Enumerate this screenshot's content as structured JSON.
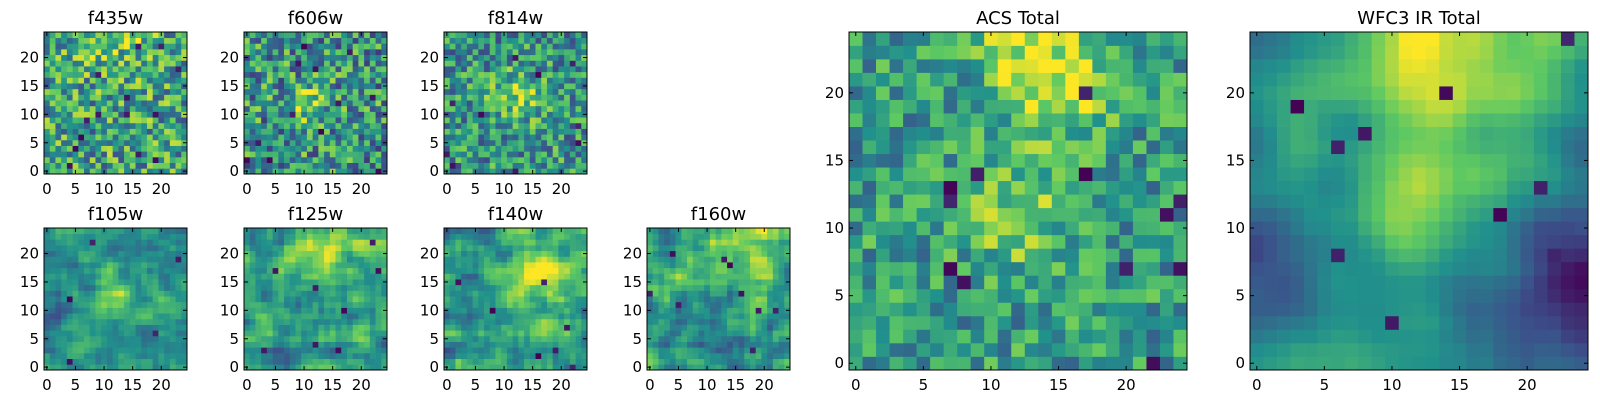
{
  "figure": {
    "colormap": "viridis",
    "grid": false,
    "cmap_colors": [
      "#440154",
      "#3b528b",
      "#21918c",
      "#5ec962",
      "#fde725"
    ]
  },
  "chart_data": [
    {
      "type": "heatmap",
      "title": "f435w",
      "grid_size": 25,
      "seed": 435,
      "xticks": [
        0,
        5,
        10,
        15,
        20
      ],
      "yticks": [
        0,
        5,
        10,
        15,
        20
      ],
      "xlim": [
        -0.5,
        24.5
      ],
      "ylim": [
        -0.5,
        24.5
      ],
      "mean": 0.58,
      "noise": 0.34,
      "smooth": 0,
      "blob": {
        "x": 12,
        "y": 24,
        "amp": 0.15,
        "r": 5
      },
      "dark_spots": 14
    },
    {
      "type": "heatmap",
      "title": "f606w",
      "grid_size": 25,
      "seed": 606,
      "xticks": [
        0,
        5,
        10,
        15,
        20
      ],
      "yticks": [
        0,
        5,
        10,
        15,
        20
      ],
      "xlim": [
        -0.5,
        24.5
      ],
      "ylim": [
        -0.5,
        24.5
      ],
      "mean": 0.52,
      "noise": 0.34,
      "smooth": 0,
      "blob": {
        "x": 11,
        "y": 12,
        "amp": 0.25,
        "r": 2.5
      },
      "dark_spots": 12
    },
    {
      "type": "heatmap",
      "title": "f814w",
      "grid_size": 25,
      "seed": 814,
      "xticks": [
        0,
        5,
        10,
        15,
        20
      ],
      "yticks": [
        0,
        5,
        10,
        15,
        20
      ],
      "xlim": [
        -0.5,
        24.5
      ],
      "ylim": [
        -0.5,
        24.5
      ],
      "mean": 0.52,
      "noise": 0.3,
      "smooth": 0,
      "blob": {
        "x": 12,
        "y": 13,
        "amp": 0.3,
        "r": 3
      },
      "dark_spots": 10
    },
    {
      "type": "heatmap",
      "title": "f105w",
      "grid_size": 25,
      "seed": 105,
      "xticks": [
        0,
        5,
        10,
        15,
        20
      ],
      "yticks": [
        0,
        5,
        10,
        15,
        20
      ],
      "xlim": [
        -0.5,
        24.5
      ],
      "ylim": [
        -0.5,
        24.5
      ],
      "mean": 0.5,
      "noise": 0.26,
      "smooth": 1,
      "blob": {
        "x": 12,
        "y": 13,
        "amp": 0.3,
        "r": 3
      },
      "dark_spots": 5
    },
    {
      "type": "heatmap",
      "title": "f125w",
      "grid_size": 25,
      "seed": 125,
      "xticks": [
        0,
        5,
        10,
        15,
        20
      ],
      "yticks": [
        0,
        5,
        10,
        15,
        20
      ],
      "xlim": [
        -0.5,
        24.5
      ],
      "ylim": [
        -0.5,
        24.5
      ],
      "mean": 0.55,
      "noise": 0.3,
      "smooth": 1,
      "blob": {
        "x": 14,
        "y": 20,
        "amp": 0.25,
        "r": 5
      },
      "dark_spots": 8
    },
    {
      "type": "heatmap",
      "title": "f140w",
      "grid_size": 25,
      "seed": 140,
      "xticks": [
        0,
        5,
        10,
        15,
        20
      ],
      "yticks": [
        0,
        5,
        10,
        15,
        20
      ],
      "xlim": [
        -0.5,
        24.5
      ],
      "ylim": [
        -0.5,
        24.5
      ],
      "mean": 0.55,
      "noise": 0.3,
      "smooth": 1,
      "blob": {
        "x": 15,
        "y": 16,
        "amp": 0.3,
        "r": 5
      },
      "dark_spots": 7
    },
    {
      "type": "heatmap",
      "title": "f160w",
      "grid_size": 25,
      "seed": 160,
      "xticks": [
        0,
        5,
        10,
        15,
        20
      ],
      "yticks": [
        0,
        5,
        10,
        15,
        20
      ],
      "xlim": [
        -0.5,
        24.5
      ],
      "ylim": [
        -0.5,
        24.5
      ],
      "mean": 0.52,
      "noise": 0.3,
      "smooth": 1,
      "blob": {
        "x": 15,
        "y": 22,
        "amp": 0.3,
        "r": 6
      },
      "dark_spots": 9
    },
    {
      "type": "heatmap",
      "title": "ACS Total",
      "grid_size": 25,
      "seed": 1001,
      "xticks": [
        0,
        5,
        10,
        15,
        20
      ],
      "yticks": [
        0,
        5,
        10,
        15,
        20
      ],
      "xlim": [
        -0.5,
        24.5
      ],
      "ylim": [
        -0.5,
        24.5
      ],
      "mean": 0.55,
      "noise": 0.24,
      "smooth": 0,
      "blob": {
        "x": 12,
        "y": 11,
        "amp": 0.3,
        "r": 2.5
      },
      "dark_spots": 12,
      "extra_blobs": [
        {
          "x": 15,
          "y": 20,
          "amp": 0.3,
          "r": 2.5
        },
        {
          "x": 13,
          "y": 24,
          "amp": 0.3,
          "r": 3
        }
      ]
    },
    {
      "type": "heatmap",
      "title": "WFC3 IR Total",
      "grid_size": 25,
      "seed": 2002,
      "xticks": [
        0,
        5,
        10,
        15,
        20
      ],
      "yticks": [
        0,
        5,
        10,
        15,
        20
      ],
      "xlim": [
        -0.5,
        24.5
      ],
      "ylim": [
        -0.5,
        24.5
      ],
      "mean": 0.5,
      "noise": 0.12,
      "smooth": 2,
      "blob": {
        "x": 15,
        "y": 23,
        "amp": 0.45,
        "r": 6
      },
      "dark_spots": 10,
      "extra_blobs": [
        {
          "x": 12,
          "y": 12,
          "amp": 0.3,
          "r": 3
        },
        {
          "x": 24,
          "y": 6,
          "amp": -0.35,
          "r": 5
        },
        {
          "x": 0,
          "y": 8,
          "amp": -0.25,
          "r": 4
        }
      ]
    }
  ]
}
